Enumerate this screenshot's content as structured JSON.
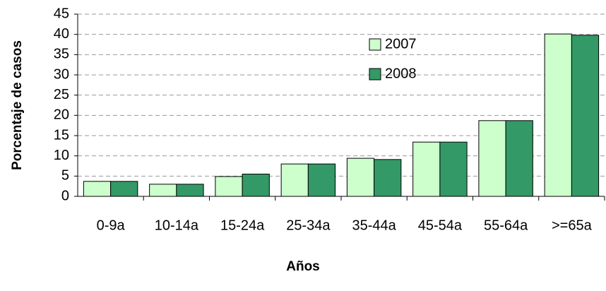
{
  "chart_data": {
    "type": "bar",
    "x_label": "Años",
    "y_label": "Porcentaje de casos",
    "categories": [
      "0-9a",
      "10-14a",
      "15-24a",
      "25-34a",
      "35-44a",
      "45-54a",
      "55-64a",
      ">=65a"
    ],
    "series": [
      {
        "name": "2007",
        "color": "#ccffcc",
        "values": [
          3.7,
          3.0,
          4.9,
          8.0,
          9.4,
          13.4,
          18.7,
          40.1
        ]
      },
      {
        "name": "2008",
        "color": "#339966",
        "values": [
          3.7,
          3.0,
          5.5,
          8.0,
          9.1,
          13.4,
          18.7,
          39.8
        ]
      }
    ],
    "ylim": [
      0,
      45
    ],
    "yticks": [
      0,
      5,
      10,
      15,
      20,
      25,
      30,
      35,
      40,
      45
    ],
    "grid": true
  }
}
